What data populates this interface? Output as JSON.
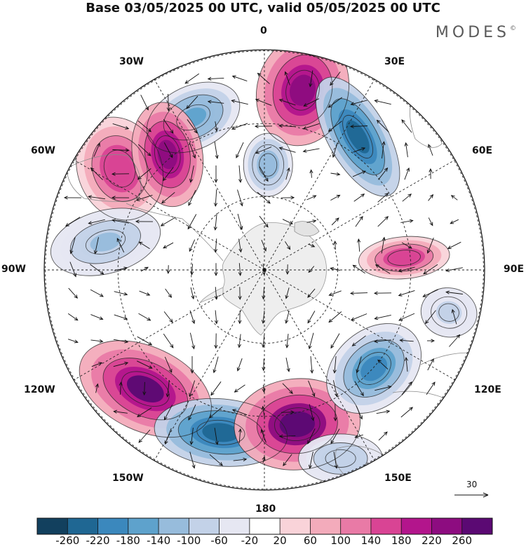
{
  "title": "Base 03/05/2025 00 UTC, valid 05/05/2025 00 UTC",
  "brand": "MODES",
  "brand_mark": "©",
  "longitude_labels": {
    "lon_0": "0",
    "lon_30e": "30E",
    "lon_60e": "60E",
    "lon_90e": "90E",
    "lon_120e": "120E",
    "lon_150e": "150E",
    "lon_180": "180",
    "lon_150w": "150W",
    "lon_120w": "120W",
    "lon_90w": "90W",
    "lon_60w": "60W",
    "lon_30w": "30W"
  },
  "reference_vector_label": "30",
  "colorbar": {
    "labels": [
      "-260",
      "-220",
      "-180",
      "-140",
      "-100",
      "-60",
      "-20",
      "20",
      "60",
      "100",
      "140",
      "180",
      "220",
      "260"
    ],
    "colors": [
      "#12405e",
      "#1f6793",
      "#3b88bd",
      "#5ea2cc",
      "#97bcdc",
      "#c3d2e8",
      "#e6e7f2",
      "#ffffff",
      "#f9d3d9",
      "#f3abbb",
      "#e97aa6",
      "#d94494",
      "#b3158c",
      "#8d0c80",
      "#5b0973"
    ]
  },
  "polar_map": {
    "projection": "south-polar-stereographic",
    "shading_levels": [
      -260,
      -220,
      -180,
      -140,
      -100,
      -60,
      -20,
      20,
      60,
      100,
      140,
      180,
      220,
      260
    ],
    "anomaly_centers": [
      {
        "lon": -25,
        "value": -150,
        "sign": "negative"
      },
      {
        "lon": 12,
        "value": 200,
        "sign": "positive"
      },
      {
        "lon": 35,
        "value": -220,
        "sign": "negative"
      },
      {
        "lon": -55,
        "value": 150,
        "sign": "positive"
      },
      {
        "lon": -40,
        "value": 200,
        "sign": "positive"
      },
      {
        "lon": 2,
        "value": -110,
        "sign": "negative"
      },
      {
        "lon": 85,
        "value": 150,
        "sign": "positive"
      },
      {
        "lon": -80,
        "value": -100,
        "sign": "negative"
      },
      {
        "lon": -135,
        "value": 240,
        "sign": "positive"
      },
      {
        "lon": -165,
        "value": -230,
        "sign": "negative"
      },
      {
        "lon": 168,
        "value": 260,
        "sign": "positive"
      },
      {
        "lon": 132,
        "value": -200,
        "sign": "negative"
      },
      {
        "lon": 158,
        "value": -80,
        "sign": "negative"
      },
      {
        "lon": 103,
        "value": -60,
        "sign": "negative"
      }
    ]
  }
}
